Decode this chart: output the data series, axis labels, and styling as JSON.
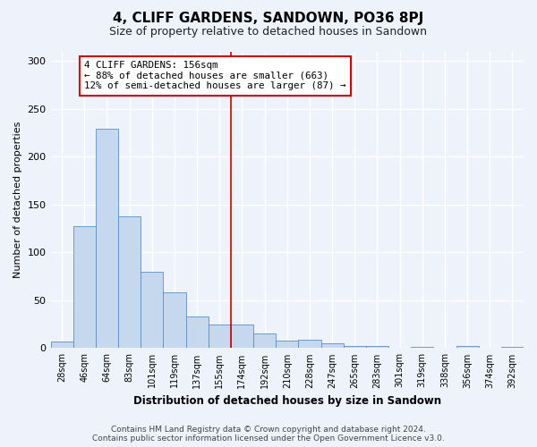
{
  "title": "4, CLIFF GARDENS, SANDOWN, PO36 8PJ",
  "subtitle": "Size of property relative to detached houses in Sandown",
  "xlabel": "Distribution of detached houses by size in Sandown",
  "ylabel": "Number of detached properties",
  "bar_labels": [
    "28sqm",
    "46sqm",
    "64sqm",
    "83sqm",
    "101sqm",
    "119sqm",
    "137sqm",
    "155sqm",
    "174sqm",
    "192sqm",
    "210sqm",
    "228sqm",
    "247sqm",
    "265sqm",
    "283sqm",
    "301sqm",
    "319sqm",
    "338sqm",
    "356sqm",
    "374sqm",
    "392sqm"
  ],
  "bar_values": [
    7,
    127,
    229,
    138,
    80,
    58,
    33,
    25,
    25,
    15,
    8,
    9,
    5,
    2,
    2,
    0,
    1,
    0,
    2,
    0,
    1
  ],
  "bar_color": "#c5d8ee",
  "bar_edge_color": "#5b8ec4",
  "ylim": [
    0,
    310
  ],
  "yticks": [
    0,
    50,
    100,
    150,
    200,
    250,
    300
  ],
  "vline_index": 7,
  "property_line_label": "4 CLIFF GARDENS: 156sqm",
  "annotation_line1": "← 88% of detached houses are smaller (663)",
  "annotation_line2": "12% of semi-detached houses are larger (87) →",
  "vline_color": "#cc0000",
  "footnote1": "Contains HM Land Registry data © Crown copyright and database right 2024.",
  "footnote2": "Contains public sector information licensed under the Open Government Licence v3.0.",
  "background_color": "#eef2fa",
  "grid_color": "#ffffff",
  "title_fontsize": 11,
  "subtitle_fontsize": 9,
  "tick_fontsize": 7,
  "ylabel_fontsize": 8,
  "xlabel_fontsize": 8.5,
  "annot_fontsize": 7.8,
  "footnote_fontsize": 6.5
}
